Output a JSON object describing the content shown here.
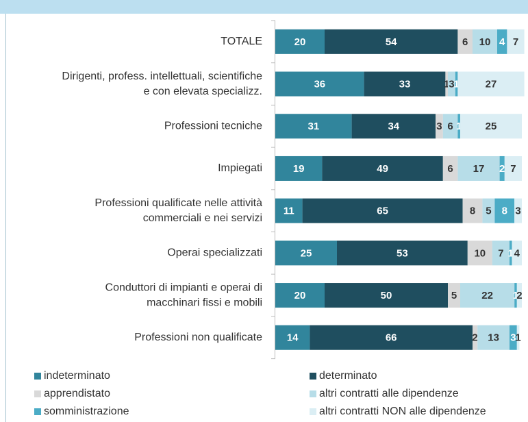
{
  "chart_data": {
    "type": "stacked-bar-horizontal",
    "categories": [
      [
        "TOTALE"
      ],
      [
        "Dirigenti, profess. intellettuali, scientifiche",
        "e con elevata specializz."
      ],
      [
        "Professioni tecniche"
      ],
      [
        "Impiegati"
      ],
      [
        "Professioni qualificate nelle attività",
        "commerciali e nei servizi"
      ],
      [
        "Operai specializzati"
      ],
      [
        "Conduttori di impianti e operai di",
        "macchinari fissi e mobili"
      ],
      [
        "Professioni non qualificate"
      ]
    ],
    "series": [
      {
        "name": "indeterminato",
        "color": "#31859c",
        "values": [
          20,
          36,
          31,
          19,
          11,
          25,
          20,
          14
        ]
      },
      {
        "name": "determinato",
        "color": "#1f4e5f",
        "values": [
          54,
          33,
          34,
          49,
          65,
          53,
          50,
          66
        ]
      },
      {
        "name": "apprendistato",
        "color": "#d9d9d9",
        "values": [
          6,
          1,
          3,
          6,
          8,
          10,
          5,
          2
        ]
      },
      {
        "name": "altri contratti alle dipendenze",
        "color": "#b7dde8",
        "values": [
          10,
          3,
          6,
          17,
          5,
          7,
          22,
          13
        ]
      },
      {
        "name": "somministrazione",
        "color": "#4bacc6",
        "values": [
          4,
          1,
          1,
          2,
          8,
          1,
          1,
          3
        ]
      },
      {
        "name": "altri contratti NON alle dipendenze",
        "color": "#dbeef4",
        "values": [
          7,
          27,
          25,
          7,
          3,
          4,
          2,
          1
        ]
      }
    ]
  }
}
